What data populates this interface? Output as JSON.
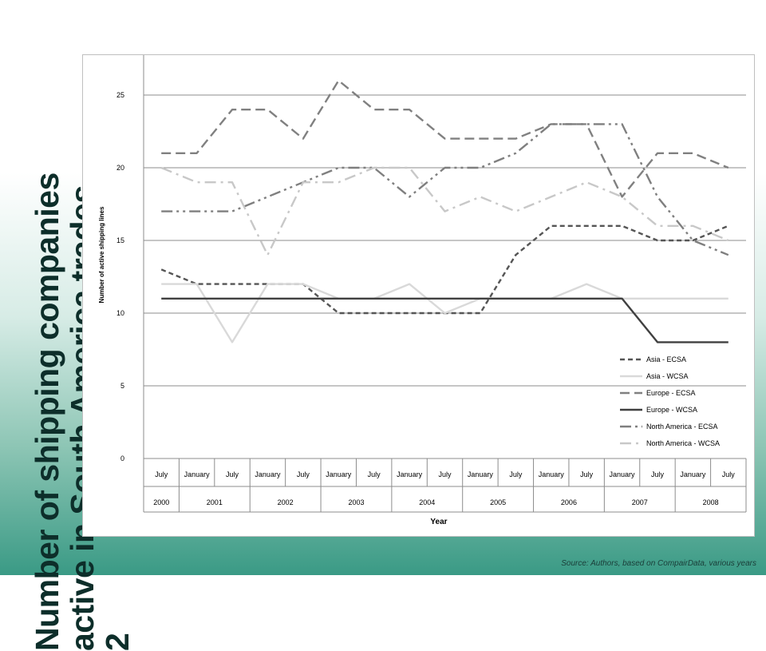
{
  "page": {
    "title": "Number of shipping companies\nactive in South America trades,\n2",
    "source": "Source: Authors, based on CompairData, various years"
  },
  "chart_data": {
    "type": "line",
    "ylabel": "Number of active shipping lines",
    "xlabel": "Year",
    "ylim": [
      0,
      27
    ],
    "yticks": [
      0,
      5,
      10,
      15,
      20,
      25
    ],
    "grid": true,
    "legend_position": "bottom-right",
    "x": [
      "July",
      "January",
      "July",
      "January",
      "July",
      "January",
      "July",
      "January",
      "July",
      "January",
      "July",
      "January",
      "July",
      "January",
      "July",
      "January",
      "July"
    ],
    "years": [
      {
        "label": "2000",
        "span": 1
      },
      {
        "label": "2001",
        "span": 2
      },
      {
        "label": "2002",
        "span": 2
      },
      {
        "label": "2003",
        "span": 2
      },
      {
        "label": "2004",
        "span": 2
      },
      {
        "label": "2005",
        "span": 2
      },
      {
        "label": "2006",
        "span": 2
      },
      {
        "label": "2007",
        "span": 2
      },
      {
        "label": "2008",
        "span": 2
      }
    ],
    "series": [
      {
        "name": "Asia - ECSA",
        "color": "#555555",
        "dash": "6,4",
        "width": 2.4,
        "values": [
          13,
          12,
          12,
          12,
          12,
          10,
          10,
          10,
          10,
          10,
          14,
          16,
          16,
          16,
          15,
          15,
          16
        ]
      },
      {
        "name": "Asia - WCSA",
        "color": "#d9d9d9",
        "dash": "",
        "width": 2.4,
        "values": [
          12,
          12,
          8,
          12,
          12,
          11,
          11,
          12,
          10,
          11,
          11,
          11,
          12,
          11,
          11,
          11,
          11
        ]
      },
      {
        "name": "Europe - ECSA",
        "color": "#808080",
        "dash": "12,6",
        "width": 2.4,
        "values": [
          21,
          21,
          24,
          24,
          22,
          26,
          24,
          24,
          22,
          22,
          22,
          23,
          23,
          18,
          21,
          21,
          20
        ]
      },
      {
        "name": "Europe - WCSA",
        "color": "#404040",
        "dash": "",
        "width": 2.4,
        "values": [
          11,
          11,
          11,
          11,
          11,
          11,
          11,
          11,
          11,
          11,
          11,
          11,
          11,
          11,
          8,
          8,
          8
        ]
      },
      {
        "name": "North America - ECSA",
        "color": "#7f7f7f",
        "dash": "14,5,3,5,3,5",
        "width": 2.4,
        "values": [
          17,
          17,
          17,
          18,
          19,
          20,
          20,
          18,
          20,
          20,
          21,
          23,
          23,
          23,
          18,
          15,
          14
        ]
      },
      {
        "name": "North America - WCSA",
        "color": "#c8c8c8",
        "dash": "14,6,3,6",
        "width": 2.4,
        "values": [
          20,
          19,
          19,
          14,
          19,
          19,
          20,
          20,
          17,
          18,
          17,
          18,
          19,
          18,
          16,
          16,
          15
        ]
      }
    ]
  }
}
